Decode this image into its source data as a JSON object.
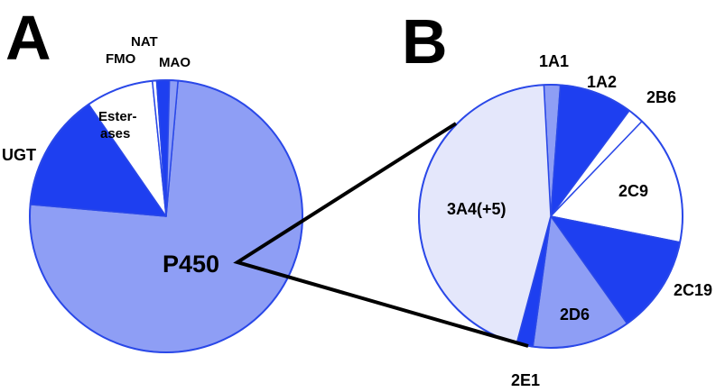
{
  "panels": {
    "a": "A",
    "b": "B"
  },
  "colors": {
    "dark_blue": "#1e3ff0",
    "mid_blue": "#8e9ef5",
    "light_blue": "#e4e7fb",
    "white": "#ffffff",
    "outline": "#2a48e8",
    "connector": "#000000"
  },
  "chart_data": [
    {
      "type": "pie",
      "panel": "A",
      "title": "",
      "slices": [
        {
          "label": "P450",
          "value": 75.0,
          "color": "#8e9ef5"
        },
        {
          "label": "UGT",
          "value": 14.0,
          "color": "#1e3ff0"
        },
        {
          "label": "Ester-ases",
          "value": 8.0,
          "color": "#ffffff"
        },
        {
          "label": "FMO",
          "value": 0.5,
          "color": "#ffffff"
        },
        {
          "label": "NAT",
          "value": 1.5,
          "color": "#1e3ff0"
        },
        {
          "label": "MAO",
          "value": 1.0,
          "color": "#8e9ef5"
        }
      ]
    },
    {
      "type": "pie",
      "panel": "B",
      "title": "",
      "slices": [
        {
          "label": "1A1",
          "value": 2.0,
          "color": "#8e9ef5"
        },
        {
          "label": "1A2",
          "value": 9.0,
          "color": "#1e3ff0"
        },
        {
          "label": "2B6",
          "value": 2.0,
          "color": "#ffffff"
        },
        {
          "label": "2C9",
          "value": 16.0,
          "color": "#ffffff"
        },
        {
          "label": "2C19",
          "value": 12.0,
          "color": "#1e3ff0"
        },
        {
          "label": "2D6",
          "value": 12.0,
          "color": "#8e9ef5"
        },
        {
          "label": "2E1",
          "value": 2.0,
          "color": "#1e3ff0"
        },
        {
          "label": "3A4(+5)",
          "value": 45.0,
          "color": "#e4e7fb"
        }
      ]
    }
  ]
}
